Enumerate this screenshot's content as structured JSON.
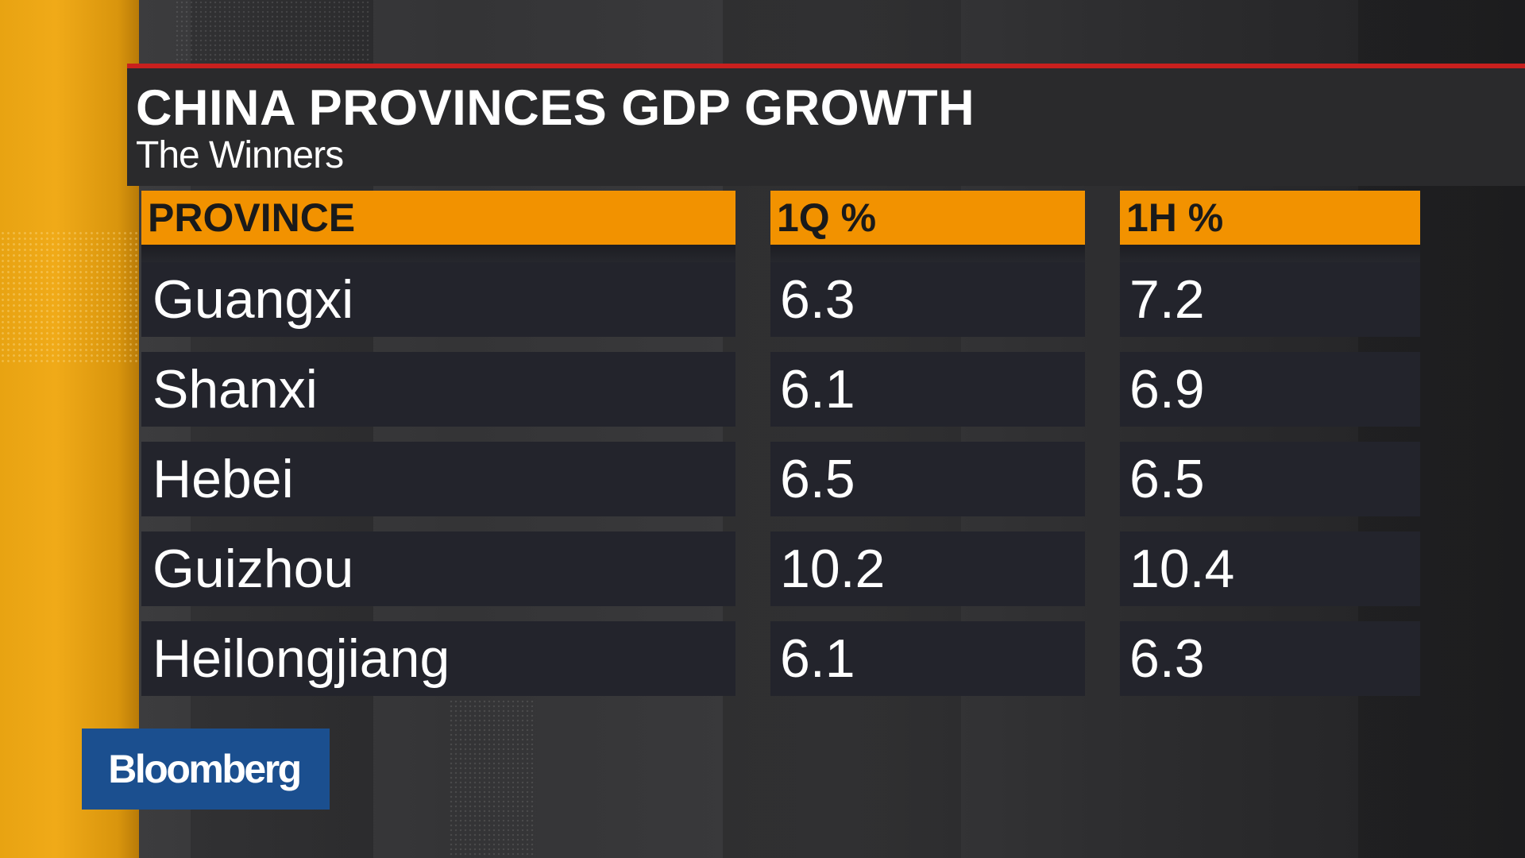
{
  "graphic": {
    "title": "CHINA PROVINCES GDP GROWTH",
    "subtitle": "The Winners"
  },
  "table": {
    "headers": [
      "PROVINCE",
      "1Q %",
      "1H %"
    ],
    "rows": [
      {
        "province": "Guangxi",
        "q1": "6.3",
        "h1": "7.2"
      },
      {
        "province": "Shanxi",
        "q1": "6.1",
        "h1": "6.9"
      },
      {
        "province": "Hebei",
        "q1": "6.5",
        "h1": "6.5"
      },
      {
        "province": "Guizhou",
        "q1": "10.2",
        "h1": "10.4"
      },
      {
        "province": "Heilongjiang",
        "q1": "6.1",
        "h1": "6.3"
      }
    ]
  },
  "logo": {
    "text": "Bloomberg"
  },
  "colors": {
    "accent_orange": "#f29200",
    "accent_red": "#c8201e",
    "logo_blue": "#1b4f8f",
    "cell_bg": "#23242c"
  }
}
